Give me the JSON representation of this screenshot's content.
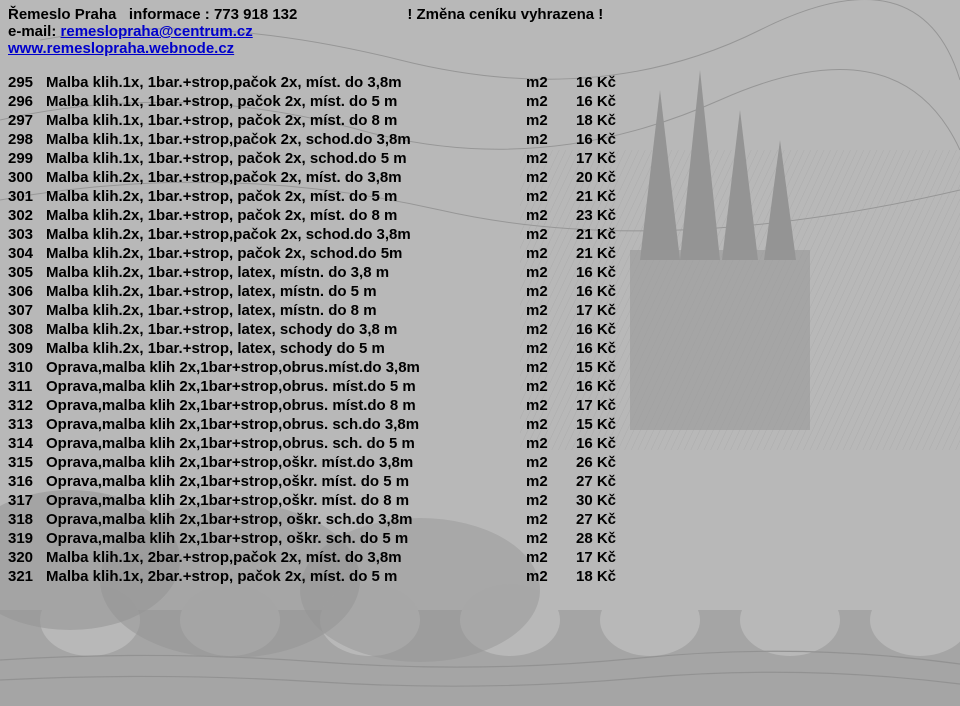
{
  "header": {
    "company": "Řemeslo Praha",
    "info_label": "informace :",
    "phone": "773 918 132",
    "notice": "! Změna ceníku vyhrazena !",
    "email_label": "e-mail:",
    "email": "remeslopraha@centrum.cz",
    "web": "www.remeslopraha.webnode.cz"
  },
  "columns": {
    "unit_label": "m2",
    "currency": "Kč"
  },
  "rows": [
    {
      "n": "295",
      "d": "Malba klih.1x, 1bar.+strop,pačok 2x, míst. do 3,8m",
      "u": "m2",
      "p": "16 Kč"
    },
    {
      "n": "296",
      "d": "Malba klih.1x, 1bar.+strop, pačok 2x, míst. do 5 m",
      "u": "m2",
      "p": "16 Kč"
    },
    {
      "n": "297",
      "d": "Malba klih.1x, 1bar.+strop, pačok 2x, míst. do 8 m",
      "u": "m2",
      "p": "18 Kč"
    },
    {
      "n": "298",
      "d": "Malba klih.1x, 1bar.+strop,pačok 2x, schod.do 3,8m",
      "u": "m2",
      "p": "16 Kč"
    },
    {
      "n": "299",
      "d": "Malba klih.1x, 1bar.+strop, pačok 2x, schod.do 5 m",
      "u": "m2",
      "p": "17 Kč"
    },
    {
      "n": "300",
      "d": "Malba klih.2x, 1bar.+strop,pačok 2x, míst. do 3,8m",
      "u": "m2",
      "p": "20 Kč"
    },
    {
      "n": "301",
      "d": "Malba klih.2x, 1bar.+strop, pačok 2x, míst. do 5 m",
      "u": "m2",
      "p": "21 Kč"
    },
    {
      "n": "302",
      "d": "Malba klih.2x, 1bar.+strop, pačok 2x, míst. do 8 m",
      "u": "m2",
      "p": "23 Kč"
    },
    {
      "n": "303",
      "d": "Malba klih.2x, 1bar.+strop,pačok 2x, schod.do 3,8m",
      "u": "m2",
      "p": "21 Kč"
    },
    {
      "n": "304",
      "d": "Malba klih.2x, 1bar.+strop, pačok 2x, schod.do 5m",
      "u": "m2",
      "p": "21 Kč"
    },
    {
      "n": "305",
      "d": "Malba klih.2x, 1bar.+strop, latex, místn. do 3,8 m",
      "u": "m2",
      "p": "16 Kč"
    },
    {
      "n": "306",
      "d": "Malba klih.2x, 1bar.+strop, latex, místn. do 5 m",
      "u": "m2",
      "p": "16 Kč"
    },
    {
      "n": "307",
      "d": "Malba klih.2x, 1bar.+strop, latex, místn. do 8 m",
      "u": "m2",
      "p": "17 Kč"
    },
    {
      "n": "308",
      "d": "Malba klih.2x, 1bar.+strop, latex, schody do 3,8 m",
      "u": "m2",
      "p": "16 Kč"
    },
    {
      "n": "309",
      "d": "Malba klih.2x, 1bar.+strop, latex, schody do 5 m",
      "u": "m2",
      "p": "16 Kč"
    },
    {
      "n": "310",
      "d": "Oprava,malba klih 2x,1bar+strop,obrus.míst.do 3,8m",
      "u": "m2",
      "p": "15 Kč"
    },
    {
      "n": "311",
      "d": "Oprava,malba klih 2x,1bar+strop,obrus. míst.do 5 m",
      "u": "m2",
      "p": "16 Kč"
    },
    {
      "n": "312",
      "d": "Oprava,malba klih 2x,1bar+strop,obrus. míst.do 8 m",
      "u": "m2",
      "p": "17 Kč"
    },
    {
      "n": "313",
      "d": "Oprava,malba klih 2x,1bar+strop,obrus. sch.do 3,8m",
      "u": "m2",
      "p": "15 Kč"
    },
    {
      "n": "314",
      "d": "Oprava,malba klih 2x,1bar+strop,obrus. sch. do 5 m",
      "u": "m2",
      "p": "16 Kč"
    },
    {
      "n": "315",
      "d": "Oprava,malba klih 2x,1bar+strop,oškr. míst.do 3,8m",
      "u": "m2",
      "p": "26 Kč"
    },
    {
      "n": "316",
      "d": "Oprava,malba klih 2x,1bar+strop,oškr. míst. do 5 m",
      "u": "m2",
      "p": "27 Kč"
    },
    {
      "n": "317",
      "d": "Oprava,malba klih 2x,1bar+strop,oškr. míst. do 8 m",
      "u": "m2",
      "p": "30 Kč"
    },
    {
      "n": "318",
      "d": "Oprava,malba klih 2x,1bar+strop, oškr. sch.do 3,8m",
      "u": "m2",
      "p": "27 Kč"
    },
    {
      "n": "319",
      "d": "Oprava,malba klih 2x,1bar+strop, oškr. sch. do 5 m",
      "u": "m2",
      "p": "28 Kč"
    },
    {
      "n": "320",
      "d": "Malba klih.1x, 2bar.+strop,pačok 2x, míst. do 3,8m",
      "u": "m2",
      "p": "17 Kč"
    },
    {
      "n": "321",
      "d": "Malba klih.1x, 2bar.+strop, pačok 2x, míst. do 5 m",
      "u": "m2",
      "p": "18 Kč"
    }
  ]
}
